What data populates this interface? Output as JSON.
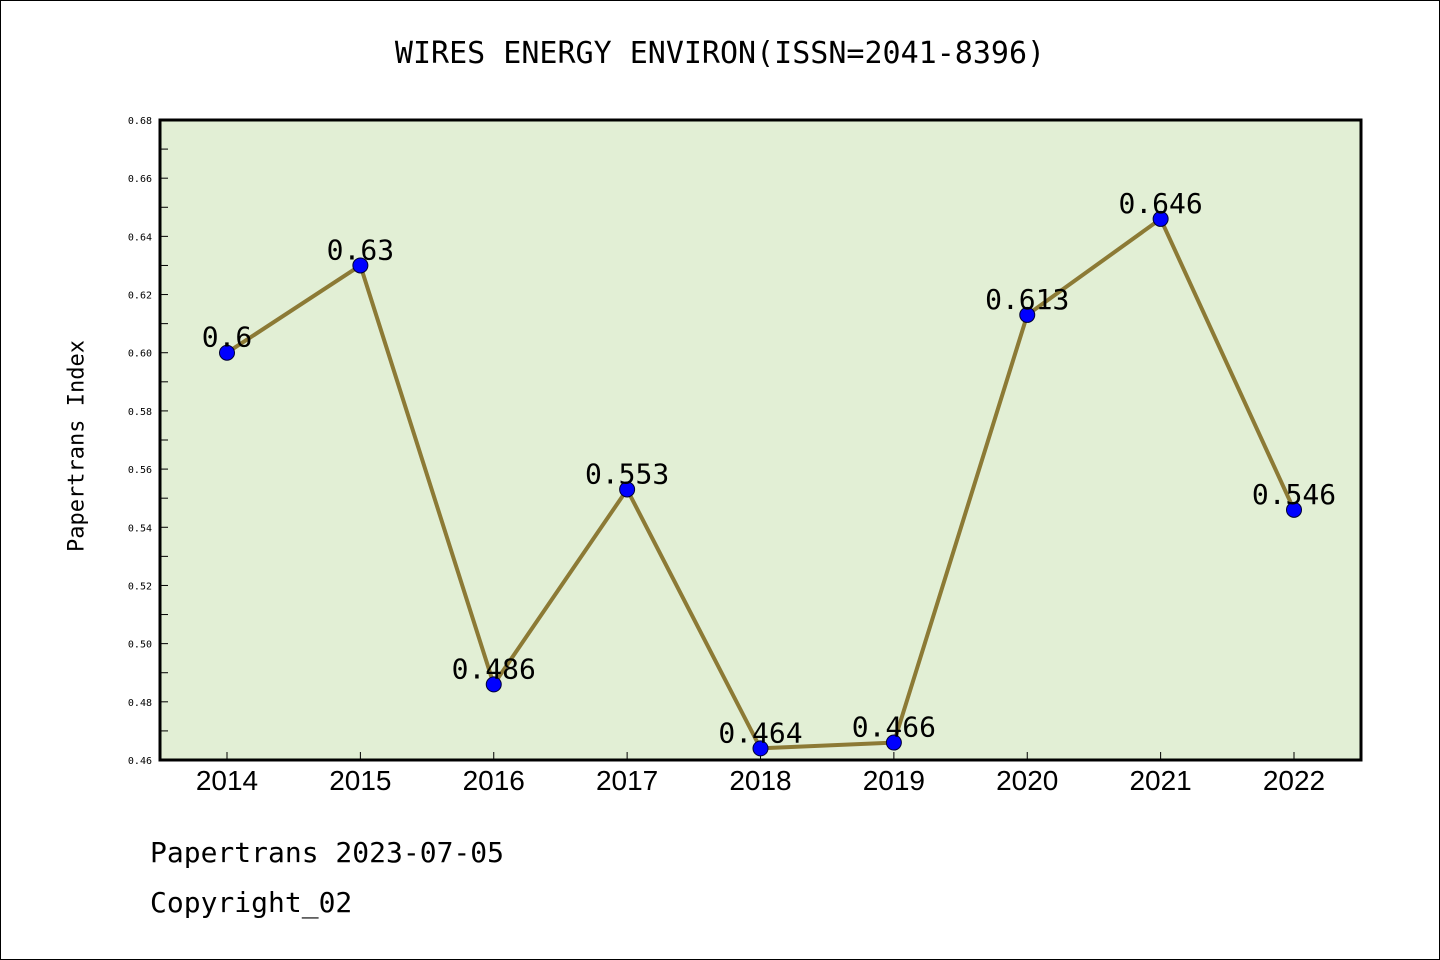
{
  "chart_data": {
    "type": "line",
    "title": "WIRES ENERGY ENVIRON(ISSN=2041-8396)",
    "xlabel": "",
    "ylabel": "Papertrans Index",
    "categories": [
      "2014",
      "2015",
      "2016",
      "2017",
      "2018",
      "2019",
      "2020",
      "2021",
      "2022"
    ],
    "series": [
      {
        "values": [
          0.6,
          0.63,
          0.486,
          0.553,
          0.464,
          0.466,
          0.613,
          0.646,
          0.546
        ],
        "labels": [
          "0.6",
          "0.63",
          "0.486",
          "0.553",
          "0.464",
          "0.466",
          "0.613",
          "0.646",
          "0.546"
        ]
      }
    ],
    "ylim": [
      0.46,
      0.68
    ],
    "yticks": [
      "0.46",
      "0.48",
      "0.50",
      "0.52",
      "0.54",
      "0.56",
      "0.58",
      "0.60",
      "0.62",
      "0.64",
      "0.66",
      "0.68"
    ],
    "grid": false,
    "colors": {
      "plot_background": "#e2efd5",
      "line": "#8c7a35",
      "marker": "#0000ff"
    }
  },
  "footer": {
    "line1": "Papertrans 2023-07-05",
    "line2": "Copyright_02"
  }
}
